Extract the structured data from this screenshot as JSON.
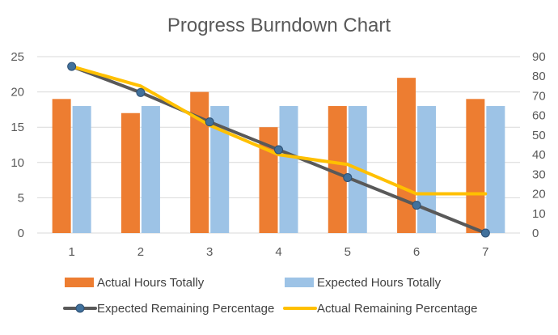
{
  "chart_data": {
    "type": "bar",
    "title": "Progress Burndown Chart",
    "categories": [
      "1",
      "2",
      "3",
      "4",
      "5",
      "6",
      "7"
    ],
    "y_left": {
      "min": 0,
      "max": 25,
      "ticks": [
        0,
        5,
        10,
        15,
        20,
        25
      ]
    },
    "y_right": {
      "min": 0,
      "max": 90,
      "ticks": [
        0,
        10,
        20,
        30,
        40,
        50,
        60,
        70,
        80,
        90
      ]
    },
    "grid": true,
    "legend_position": "bottom",
    "series": [
      {
        "name": "Actual Hours Totally",
        "kind": "bar",
        "axis": "left",
        "color": "#ED7D31",
        "values": [
          19,
          17,
          20,
          15,
          18,
          22,
          19
        ]
      },
      {
        "name": "Expected Hours Totally",
        "kind": "bar",
        "axis": "left",
        "color": "#9DC3E6",
        "values": [
          18,
          18,
          18,
          18,
          18,
          18,
          18
        ]
      },
      {
        "name": "Expected Remaining Percentage",
        "kind": "line-markers",
        "axis": "right",
        "color": "#595959",
        "marker_color": "#41719C",
        "values": [
          85,
          71.7,
          56.7,
          42.5,
          28.3,
          14.2,
          0
        ]
      },
      {
        "name": "Actual Remaining Percentage",
        "kind": "line",
        "axis": "right",
        "color": "#FFC000",
        "values": [
          85,
          75,
          55,
          40,
          35,
          20,
          20
        ]
      }
    ]
  }
}
